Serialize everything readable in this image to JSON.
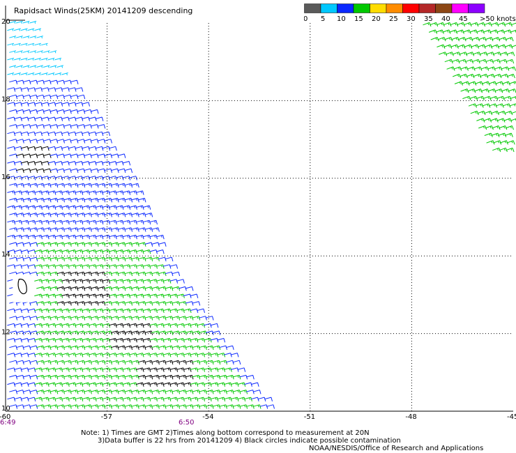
{
  "title": "Rapidsact Winds(25KM) 20141209 descending",
  "legend": {
    "unit_label": ">50 knots",
    "ticks": [
      "0",
      "5",
      "10",
      "15",
      "20",
      "25",
      "30",
      "35",
      "40",
      "45"
    ],
    "bins": [
      {
        "from": 0,
        "to": 5,
        "color": "#5a5a5a"
      },
      {
        "from": 5,
        "to": 10,
        "color": "#00c8ff"
      },
      {
        "from": 10,
        "to": 15,
        "color": "#0a28ff"
      },
      {
        "from": 15,
        "to": 20,
        "color": "#00c800"
      },
      {
        "from": 20,
        "to": 25,
        "color": "#ffdc00"
      },
      {
        "from": 25,
        "to": 30,
        "color": "#ff8c00"
      },
      {
        "from": 30,
        "to": 35,
        "color": "#ff0000"
      },
      {
        "from": 35,
        "to": 40,
        "color": "#b42828"
      },
      {
        "from": 40,
        "to": 45,
        "color": "#8c4614"
      },
      {
        "from": 45,
        "to": 50,
        "color": "#ff00ff"
      },
      {
        "from": 50,
        "to": 60,
        "color": "#8c00ff"
      }
    ],
    "contamination_color": "#000000"
  },
  "axes": {
    "lat_labels": [
      "20",
      "18",
      "16",
      "14",
      "12",
      "10"
    ],
    "lon_labels": [
      "-60",
      "-57",
      "-54",
      "-51",
      "-48",
      "-45"
    ],
    "lat_range": [
      10,
      20
    ],
    "lon_range": [
      -60,
      -45
    ],
    "grid": "dotted"
  },
  "pass_times": [
    "6:49",
    "6:50"
  ],
  "notes": [
    "Note: 1) Times are GMT 2)Times along bottom correspond to measurement at 20N",
    "3)Data buffer is 22 hrs from 20141209 4) Black circles indicate possible contamination",
    "NOAA/NESDIS/Office of Research and Applications"
  ],
  "swaths": [
    {
      "name": "west swath",
      "lat_range": [
        10,
        20
      ],
      "lon_west": -60,
      "east_edge_lon_at_lat": [
        {
          "lat": 20,
          "lon": -59.2
        },
        {
          "lat": 16.3,
          "lon": -56.4
        },
        {
          "lat": 14,
          "lon": -55.3
        },
        {
          "lat": 10,
          "lon": -52.1
        }
      ],
      "wind_from_deg": 75,
      "speed_zones": [
        {
          "lat_min": 18.5,
          "lat_max": 20,
          "knots": 7
        },
        {
          "lat_min": 16,
          "lat_max": 18.5,
          "knots": 12
        },
        {
          "lat_min": 14.3,
          "lat_max": 16,
          "knots": 13
        },
        {
          "lat_min": 10,
          "lat_max": 14.3,
          "knots": 17,
          "blue_margin_lon": -59.2
        }
      ],
      "contamination_areas": [
        {
          "lat_min": 16.1,
          "lat_max": 16.9,
          "lon_min": -59.7,
          "lon_max": -58.8
        },
        {
          "lat_min": 12.7,
          "lat_max": 13.7,
          "lon_min": -58.5,
          "lon_max": -57.1
        },
        {
          "lat_min": 11.5,
          "lat_max": 12.3,
          "lon_min": -57.0,
          "lon_max": -55.8
        },
        {
          "lat_min": 10.5,
          "lat_max": 11.3,
          "lon_min": -56.2,
          "lon_max": -54.6
        }
      ]
    },
    {
      "name": "east swath",
      "lat_range": [
        16.6,
        20
      ],
      "lon_east": -45,
      "west_edge_lon_at_lat": [
        {
          "lat": 20,
          "lon": -47.7
        },
        {
          "lat": 16.6,
          "lon": -45.6
        }
      ],
      "wind_from_deg": 70,
      "speed_zones": [
        {
          "lat_min": 16,
          "lat_max": 20,
          "knots": 17
        }
      ]
    }
  ],
  "land": [
    {
      "name": "Barbados",
      "lat": 13.2,
      "lon": -59.5
    }
  ],
  "map_style": {
    "background": "#ffffff",
    "grid_color": "#000000",
    "text_color": "#000000"
  }
}
